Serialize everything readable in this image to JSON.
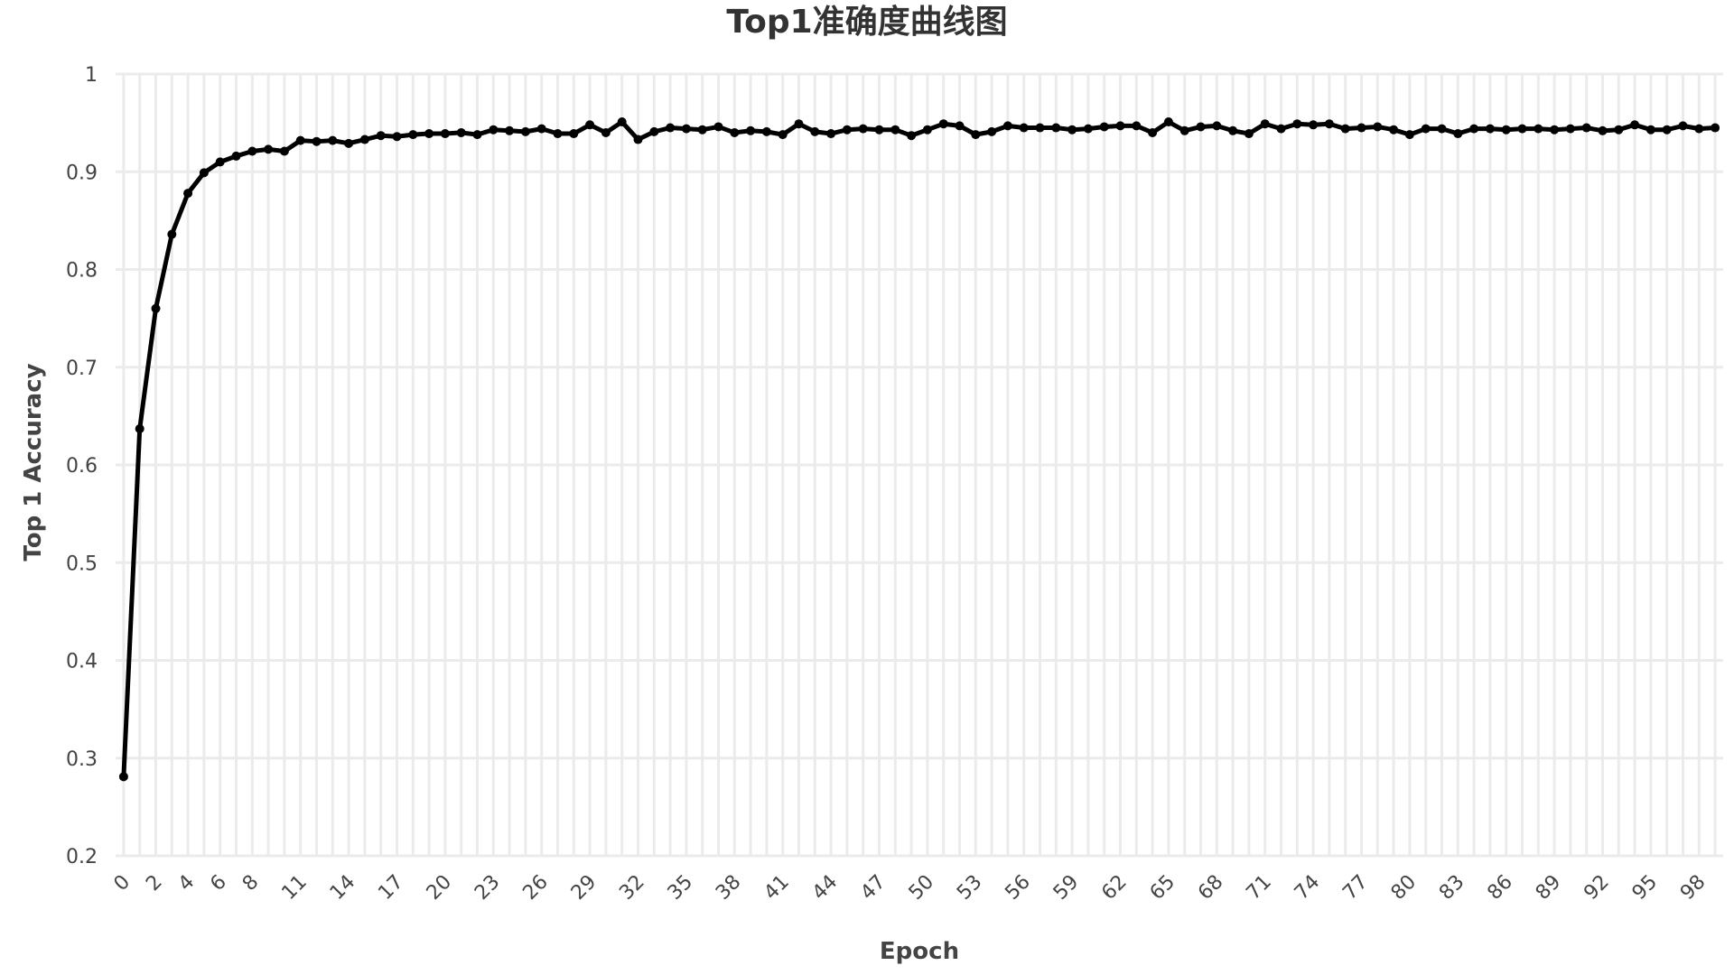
{
  "chart_data": {
    "type": "line",
    "title": "Top1准确度曲线图",
    "xlabel": "Epoch",
    "ylabel": "Top 1 Accuracy",
    "xlim": [
      -0.5,
      99.5
    ],
    "ylim": [
      0.2,
      1.0
    ],
    "yticks": [
      "0.2",
      "0.3",
      "0.4",
      "0.5",
      "0.6",
      "0.7",
      "0.8",
      "0.9",
      "1"
    ],
    "xticks": [
      "0",
      "2",
      "4",
      "6",
      "8",
      "11",
      "14",
      "17",
      "20",
      "23",
      "26",
      "29",
      "32",
      "35",
      "38",
      "41",
      "44",
      "47",
      "50",
      "53",
      "56",
      "59",
      "62",
      "65",
      "68",
      "71",
      "74",
      "77",
      "80",
      "83",
      "86",
      "89",
      "92",
      "95",
      "98"
    ],
    "grid": true,
    "legend": "none",
    "colors": {
      "line": "#000000",
      "grid": "#ebebeb"
    },
    "series": [
      {
        "values": [
          0.281,
          0.637,
          0.76,
          0.836,
          0.878,
          0.899,
          0.91,
          0.916,
          0.921,
          0.923,
          0.921,
          0.932,
          0.931,
          0.932,
          0.929,
          0.933,
          0.937,
          0.936,
          0.938,
          0.939,
          0.939,
          0.94,
          0.938,
          0.943,
          0.942,
          0.941,
          0.944,
          0.939,
          0.939,
          0.948,
          0.94,
          0.951,
          0.933,
          0.941,
          0.945,
          0.944,
          0.943,
          0.946,
          0.94,
          0.942,
          0.941,
          0.938,
          0.949,
          0.941,
          0.939,
          0.943,
          0.944,
          0.943,
          0.943,
          0.937,
          0.943,
          0.949,
          0.947,
          0.938,
          0.941,
          0.947,
          0.945,
          0.945,
          0.945,
          0.943,
          0.944,
          0.946,
          0.947,
          0.947,
          0.94,
          0.951,
          0.942,
          0.946,
          0.947,
          0.942,
          0.939,
          0.949,
          0.944,
          0.949,
          0.948,
          0.949,
          0.944,
          0.945,
          0.946,
          0.943,
          0.938,
          0.944,
          0.944,
          0.939,
          0.944,
          0.944,
          0.943,
          0.944,
          0.944,
          0.943,
          0.944,
          0.945,
          0.942,
          0.943,
          0.948,
          0.943,
          0.943,
          0.947,
          0.944,
          0.945
        ]
      }
    ]
  }
}
